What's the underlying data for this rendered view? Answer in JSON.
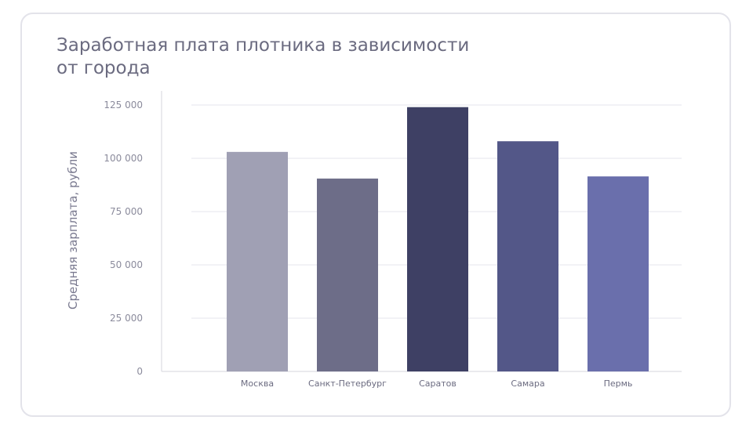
{
  "chart_data": {
    "type": "bar",
    "title": "Заработная плата плотника в зависимости от города",
    "xlabel": "",
    "ylabel": "Средняя зарплата, рубли",
    "categories": [
      "Москва",
      "Санкт-Петербург",
      "Саратов",
      "Самара",
      "Пермь"
    ],
    "values": [
      103000,
      90500,
      124000,
      108000,
      91500
    ],
    "colors": [
      "#a0a0b4",
      "#6d6d88",
      "#3e4064",
      "#535788",
      "#6a6fac"
    ],
    "ylim": [
      0,
      125000
    ],
    "yticks": [
      0,
      25000,
      50000,
      75000,
      100000,
      125000
    ],
    "ytick_labels": [
      "0",
      "25 000",
      "50 000",
      "75 000",
      "100 000",
      "125 000"
    ],
    "grid": true,
    "legend": "none"
  }
}
